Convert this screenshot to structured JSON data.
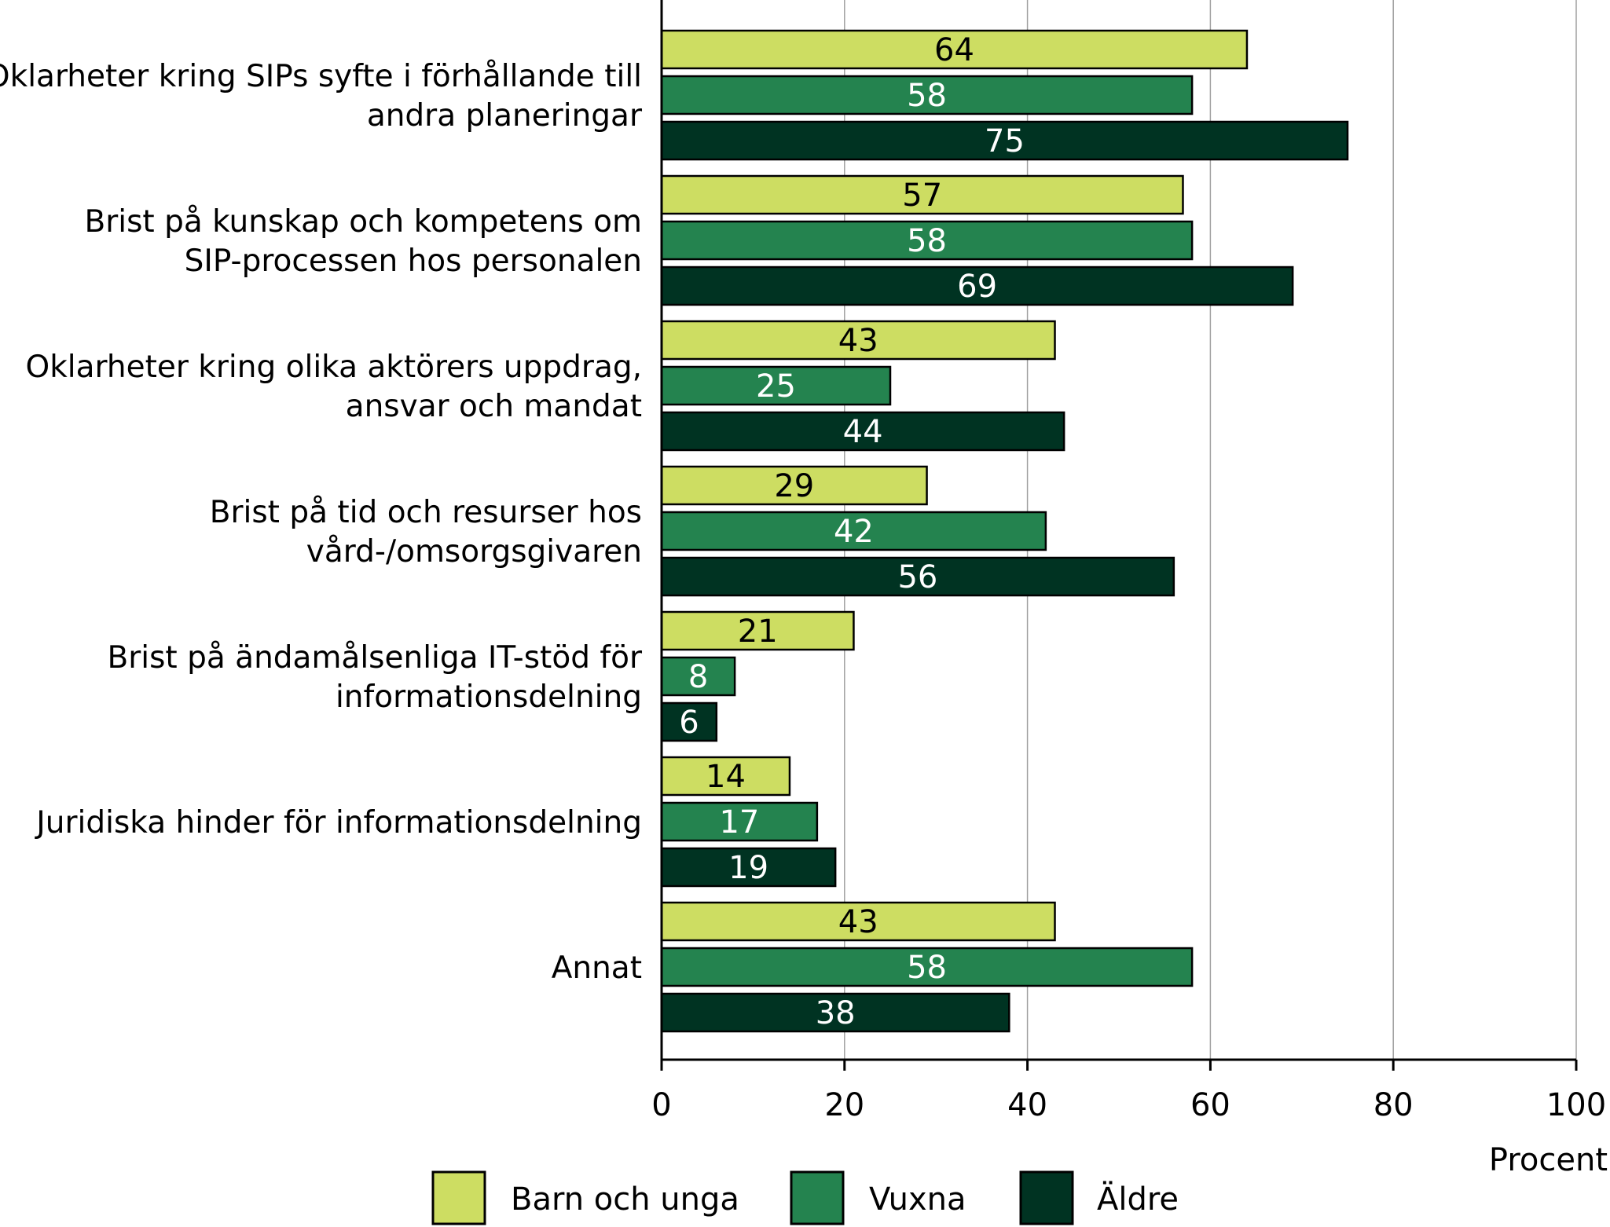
{
  "chart_data": {
    "type": "bar",
    "orientation": "horizontal",
    "categories": [
      [
        "Oklarheter kring SIPs syfte i förhållande till",
        "andra planeringar"
      ],
      [
        "Brist på kunskap och kompetens om",
        "SIP-processen hos personalen"
      ],
      [
        "Oklarheter kring olika aktörers uppdrag,",
        "ansvar och mandat"
      ],
      [
        "Brist på tid och resurser hos",
        "vård-/omsorgsgivaren"
      ],
      [
        "Brist på ändamålsenliga IT-stöd för",
        "informationsdelning"
      ],
      [
        "Juridiska hinder för informationsdelning"
      ],
      [
        "Annat"
      ]
    ],
    "series": [
      {
        "name": "Barn och unga",
        "color": "#cddd62",
        "label_color": "#000000",
        "values": [
          64,
          57,
          43,
          29,
          21,
          14,
          43
        ]
      },
      {
        "name": "Vuxna",
        "color": "#24834f",
        "label_color": "#ffffff",
        "values": [
          58,
          58,
          25,
          42,
          8,
          17,
          58
        ]
      },
      {
        "name": "Äldre",
        "color": "#003322",
        "label_color": "#ffffff",
        "values": [
          75,
          69,
          44,
          56,
          6,
          19,
          38
        ]
      }
    ],
    "xlabel": "Procent",
    "xlim": [
      0,
      100
    ],
    "xticks": [
      0,
      20,
      40,
      60,
      80,
      100
    ],
    "grid": true,
    "legend": "bottom"
  }
}
